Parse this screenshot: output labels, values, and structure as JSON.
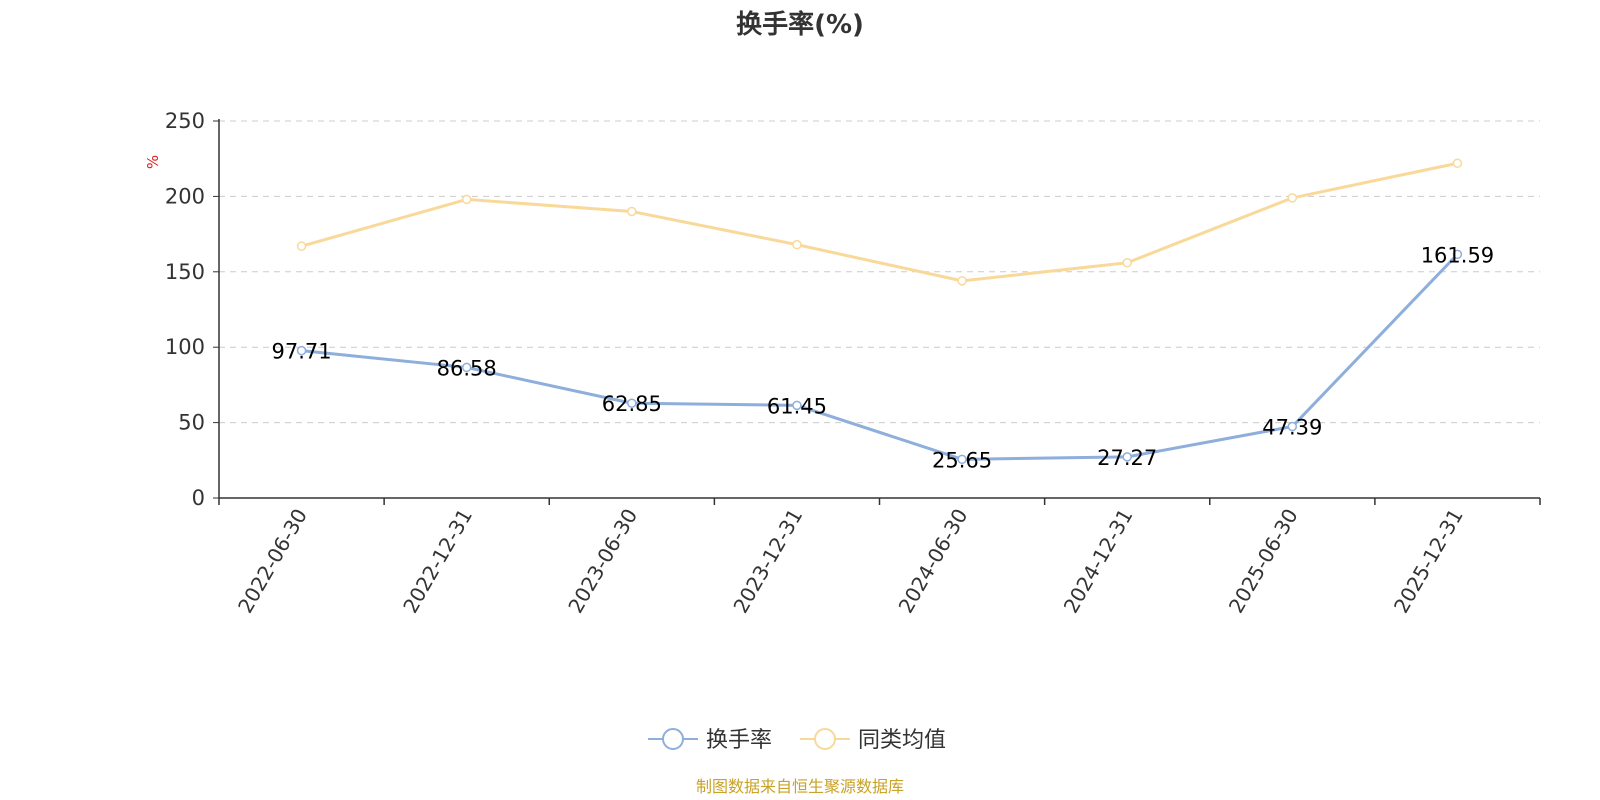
{
  "chart_data": {
    "type": "line",
    "title": "换手率(%)",
    "ylabel": "%",
    "ylim": [
      0,
      250
    ],
    "yticks": [
      0,
      50,
      100,
      150,
      200,
      250
    ],
    "categories": [
      "2022-06-30",
      "2022-12-31",
      "2023-06-30",
      "2023-12-31",
      "2024-06-30",
      "2024-12-31",
      "2025-06-30",
      "2025-12-31"
    ],
    "series": [
      {
        "name": "换手率",
        "values": [
          97.71,
          86.58,
          62.85,
          61.45,
          25.65,
          27.27,
          47.39,
          161.59
        ],
        "data_labels": [
          "97.71",
          "86.58",
          "62.85",
          "61.45",
          "25.65",
          "27.27",
          "47.39",
          "161.59"
        ],
        "color": "#8eaedb"
      },
      {
        "name": "同类均值",
        "values": [
          167,
          198,
          190,
          168,
          144,
          156,
          199,
          222
        ],
        "color": "#f9d99a"
      }
    ],
    "grid": "horizontal-dashed",
    "legend_position": "bottom-center"
  },
  "colors": {
    "axis": "#333333",
    "grid": "#cccccc",
    "unit": "#e02020",
    "source": "#c9a227"
  },
  "footer": {
    "source_text": "制图数据来自恒生聚源数据库"
  }
}
